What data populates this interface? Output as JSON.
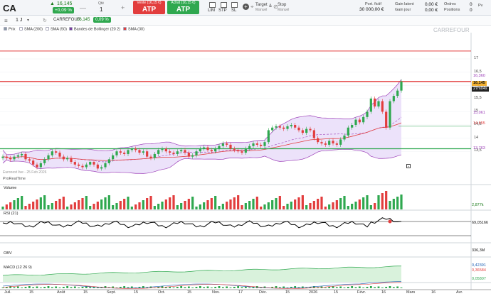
{
  "toolbar": {
    "symbol": "CA",
    "price": "16,145",
    "change": "+0,09 %",
    "qty_label": "Qté",
    "qty_value": "1",
    "sell_sub": "Vente (16,15 €)",
    "sell_main": "ATP",
    "buy_sub": "Achat (16,15 €)",
    "buy_main": "ATP",
    "lim": "LIM",
    "stp": "STP",
    "sl": "SL",
    "target": "Target",
    "target_sub": "Manuel",
    "stop": "Stop",
    "stop_sub": "Manuel",
    "amp": "&",
    "portfolio_label": "Port. fictif",
    "portfolio_value": "30 000,00 €",
    "gain_latent_label": "Gain latent",
    "gain_latent_value": "0,00 €",
    "gain_jour_label": "Gain jour",
    "gain_jour_value": "0,00 €",
    "ordres_label": "Ordres",
    "ordres_value": "0",
    "positions_label": "Positions",
    "positions_value": "0",
    "pv_label": "Pv"
  },
  "chart_toolbar": {
    "interval": "1 J",
    "instrument": "CARREFOUR",
    "last": "16,145",
    "last_change": "0,09 %",
    "watermark": "CARREFOUR"
  },
  "legend": [
    {
      "label": "Prix",
      "color": "#8b9aa6"
    },
    {
      "label": "SMA (200)",
      "color": "#ffffff"
    },
    {
      "label": "SMA (50)",
      "color": "#ffffff"
    },
    {
      "label": "Bandes de Bollinger (20 2)",
      "color": "#7b3fa0"
    },
    {
      "label": "SMA (30)",
      "color": "#e23d3d"
    }
  ],
  "colors": {
    "up": "#2fa84f",
    "down": "#e23d3d",
    "boll": "#9c3fb8",
    "boll_fill": "#ece2fa",
    "sma30": "#e23d3d",
    "obv_fill": "#d9f2dc"
  },
  "price_axis": {
    "ticks": [
      "17",
      "16,5",
      "16",
      "15,5",
      "15",
      "14,5",
      "14",
      "13,5"
    ],
    "tags": [
      "16,360",
      "16,145",
      "27m04s",
      "15,061",
      "14,655",
      "13,763"
    ]
  },
  "panels": {
    "volume": {
      "label": "Volume",
      "value": "2,877k"
    },
    "rsi": {
      "label": "RSI (21)",
      "value": "69,05166"
    },
    "obv": {
      "label": "OBV",
      "value": "336,3M"
    },
    "macd": {
      "label": "MACD (12 26 9)",
      "values": [
        "0,42391",
        "0,36584",
        "0,05807"
      ]
    }
  },
  "annotation": {
    "info_text": "Euronext live - 25 Feb 2026",
    "rt_text": "ProRealTime"
  },
  "x_axis": [
    "Juil.",
    "15",
    "Août",
    "15",
    "Sept.",
    "15",
    "Oct.",
    "15",
    "Nov.",
    "17",
    "Déc.",
    "15",
    "2026",
    "15",
    "Févr.",
    "16",
    "Mars",
    "16",
    "Avr."
  ],
  "chart_data": {
    "type": "candlestick",
    "title": "CARREFOUR",
    "levels": {
      "resistance": 17.3,
      "price_line": 16.145,
      "support": 13.6
    },
    "closes": [
      13.3,
      13.25,
      13.2,
      13.3,
      13.35,
      13.4,
      13.2,
      13.15,
      13.0,
      12.9,
      13.05,
      13.2,
      13.35,
      13.5,
      13.45,
      13.3,
      13.2,
      13.25,
      13.1,
      13.0,
      12.95,
      12.9,
      13.0,
      13.1,
      13.0,
      12.85,
      12.9,
      13.05,
      13.2,
      13.35,
      13.5,
      13.45,
      13.4,
      13.55,
      13.6,
      13.55,
      13.45,
      13.5,
      13.3,
      13.25,
      13.4,
      13.55,
      13.6,
      13.5,
      13.45,
      13.4,
      13.5,
      13.55,
      13.45,
      13.3,
      13.35,
      13.5,
      13.6,
      13.65,
      13.55,
      13.5,
      13.6,
      13.7,
      13.8,
      13.75,
      13.6,
      13.55,
      13.5,
      13.45,
      13.6,
      13.7,
      13.8,
      13.75,
      13.7,
      13.85,
      14.3,
      14.4,
      14.45,
      14.4,
      14.35,
      14.45,
      14.5,
      14.4,
      14.3,
      14.2,
      14.35,
      14.3,
      14.0,
      13.85,
      13.8,
      13.75,
      13.9,
      13.8,
      13.75,
      13.95,
      14.1,
      14.4,
      14.5,
      14.7,
      14.6,
      14.8,
      15.0,
      15.5,
      15.2,
      15.4,
      15.0,
      14.4,
      15.4,
      15.6,
      15.8,
      16.145
    ],
    "sma30_range": [
      13.0,
      14.8
    ],
    "volume_value": 2.877,
    "rsi_value": 69.05166,
    "obv_value": 336.3
  }
}
